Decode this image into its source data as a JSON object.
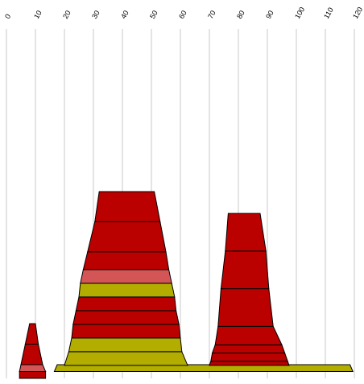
{
  "chart_data": {
    "type": "bar",
    "subtype": "stacked trapezoid towers (pyramid-style)",
    "title": "",
    "xlabel": "",
    "ylabel": "",
    "xlim": [
      0,
      120
    ],
    "x_ticks": [
      "0",
      "10",
      "20",
      "30",
      "40",
      "50",
      "60",
      "70",
      "80",
      "90",
      "100",
      "110",
      "120"
    ],
    "x_tick_rotation": "-60deg",
    "grid": "vertical lines at each x tick",
    "legend": "none",
    "colors": {
      "red": "#bb0000",
      "light_red": "#d45555",
      "olive": "#b3ad00",
      "grid": "#c8c8c8",
      "segment_border": "#000000"
    },
    "stack_unit": "layers from bottom (each segment has a thickness in layer units)",
    "towers": [
      {
        "base_layer": 0,
        "segments": [
          {
            "left_bottom": 4.5,
            "right_bottom": 13.5,
            "left_top": 4.5,
            "right_top": 13.5,
            "thickness": 1,
            "color": "red"
          }
        ]
      },
      {
        "base_layer": 1,
        "segments": [
          {
            "left_bottom": 16.5,
            "right_bottom": 119.5,
            "left_top": 17.5,
            "right_top": 118.5,
            "thickness": 1,
            "color": "olive"
          }
        ]
      },
      {
        "base_layer": 1,
        "segments": [
          {
            "left_bottom": 4.5,
            "right_bottom": 13.5,
            "left_top": 5,
            "right_top": 12.5,
            "thickness": 1,
            "color": "light_red"
          },
          {
            "left_bottom": 5,
            "right_bottom": 12.5,
            "left_top": 6.5,
            "right_top": 11,
            "thickness": 3,
            "color": "red"
          },
          {
            "left_bottom": 6.5,
            "right_bottom": 11,
            "left_top": 8,
            "right_top": 10,
            "thickness": 3,
            "color": "red"
          }
        ]
      },
      {
        "base_layer": 1.9,
        "segments": [
          {
            "left_bottom": 20,
            "right_bottom": 62.5,
            "left_top": 20.5,
            "right_top": 62,
            "thickness": 0,
            "color": "olive"
          },
          {
            "left_bottom": 20,
            "right_bottom": 62.5,
            "left_top": 21.5,
            "right_top": 60.5,
            "thickness": 2,
            "color": "olive"
          },
          {
            "left_bottom": 21.5,
            "right_bottom": 60.5,
            "left_top": 22.5,
            "right_top": 60,
            "thickness": 2,
            "color": "olive"
          },
          {
            "left_bottom": 22.5,
            "right_bottom": 60,
            "left_top": 23,
            "right_top": 59.5,
            "thickness": 2,
            "color": "red"
          },
          {
            "left_bottom": 23,
            "right_bottom": 59.5,
            "left_top": 24,
            "right_top": 58.5,
            "thickness": 2,
            "color": "red"
          },
          {
            "left_bottom": 24,
            "right_bottom": 58.5,
            "left_top": 25,
            "right_top": 58,
            "thickness": 2,
            "color": "red"
          },
          {
            "left_bottom": 25,
            "right_bottom": 58,
            "left_top": 25.5,
            "right_top": 57,
            "thickness": 2,
            "color": "olive"
          },
          {
            "left_bottom": 25.5,
            "right_bottom": 57,
            "left_top": 26.5,
            "right_top": 56,
            "thickness": 2,
            "color": "light_red"
          },
          {
            "left_bottom": 26.5,
            "right_bottom": 56,
            "left_top": 28,
            "right_top": 55,
            "thickness": 2.6,
            "color": "red"
          },
          {
            "left_bottom": 28,
            "right_bottom": 55,
            "left_top": 30.5,
            "right_top": 53,
            "thickness": 4.4,
            "color": "red"
          },
          {
            "left_bottom": 30.5,
            "right_bottom": 53,
            "left_top": 32,
            "right_top": 51,
            "thickness": 4.4,
            "color": "red"
          }
        ]
      },
      {
        "base_layer": 1.9,
        "segments": [
          {
            "left_bottom": 70,
            "right_bottom": 97.5,
            "left_top": 70.5,
            "right_top": 97,
            "thickness": 0.6,
            "color": "red"
          },
          {
            "left_bottom": 70.5,
            "right_bottom": 97,
            "left_top": 71,
            "right_top": 96,
            "thickness": 1.2,
            "color": "red"
          },
          {
            "left_bottom": 71,
            "right_bottom": 96,
            "left_top": 72,
            "right_top": 95,
            "thickness": 1.2,
            "color": "red"
          },
          {
            "left_bottom": 72,
            "right_bottom": 95,
            "left_top": 73,
            "right_top": 92,
            "thickness": 2.7,
            "color": "red"
          },
          {
            "left_bottom": 73,
            "right_bottom": 92,
            "left_top": 74,
            "right_top": 90.5,
            "thickness": 5.5,
            "color": "red"
          },
          {
            "left_bottom": 74,
            "right_bottom": 90.5,
            "left_top": 75.5,
            "right_top": 89.5,
            "thickness": 5.5,
            "color": "red"
          },
          {
            "left_bottom": 75.5,
            "right_bottom": 89.5,
            "left_top": 76.5,
            "right_top": 87.5,
            "thickness": 5.5,
            "color": "red"
          }
        ]
      }
    ]
  }
}
